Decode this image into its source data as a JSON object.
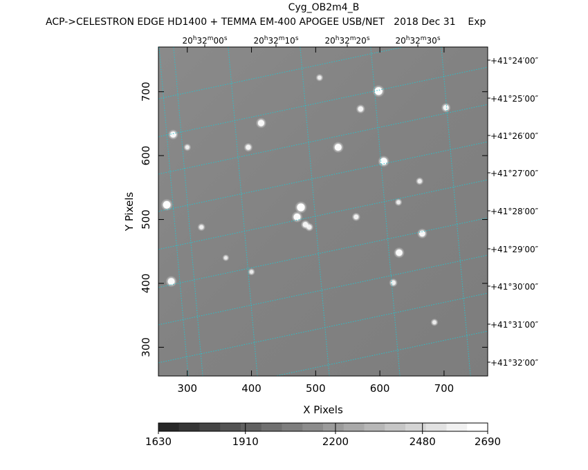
{
  "chart_data": {
    "type": "heatmap",
    "title": "Cyg_OB2m4_B",
    "subtitle": "ACP->CELESTRON EDGE HD1400 + TEMMA EM-400 APOGEE USB/NET   2018 Dec 31    Exp",
    "xlabel": "X Pixels",
    "ylabel": "Y Pixels",
    "xlim": [
      255,
      768
    ],
    "ylim": [
      255,
      770
    ],
    "x_ticks": [
      300,
      400,
      500,
      600,
      700
    ],
    "y_ticks": [
      300,
      400,
      500,
      600,
      700
    ],
    "ra_ticks": [
      {
        "h": "20",
        "m": "32",
        "s": "00"
      },
      {
        "h": "20",
        "m": "32",
        "s": "10"
      },
      {
        "h": "20",
        "m": "32",
        "s": "20"
      },
      {
        "h": "20",
        "m": "32",
        "s": "30"
      }
    ],
    "dec_ticks": [
      "+41°24′00″",
      "+41°25′00″",
      "+41°26′00″",
      "+41°27′00″",
      "+41°28′00″",
      "+41°29′00″",
      "+41°30′00″",
      "+41°31′00″",
      "+41°32′00″"
    ],
    "colorbar": {
      "levels": 16,
      "range": [
        1630,
        2690
      ],
      "tick_labels": [
        "1630",
        "1910",
        "2200",
        "2480",
        "2690"
      ],
      "tick_values": [
        1630,
        1910,
        2200,
        2480,
        2690
      ]
    },
    "grid": true,
    "grid_color": "#29c2cc",
    "stars": [
      {
        "x": 275,
        "y": 403,
        "b": 0.85
      },
      {
        "x": 268,
        "y": 523,
        "b": 0.95
      },
      {
        "x": 278,
        "y": 633,
        "b": 0.7
      },
      {
        "x": 300,
        "y": 613,
        "b": 0.3
      },
      {
        "x": 322,
        "y": 488,
        "b": 0.35
      },
      {
        "x": 395,
        "y": 613,
        "b": 0.5
      },
      {
        "x": 415,
        "y": 651,
        "b": 0.75
      },
      {
        "x": 535,
        "y": 613,
        "b": 0.85
      },
      {
        "x": 477,
        "y": 519,
        "b": 1.0
      },
      {
        "x": 471,
        "y": 504,
        "b": 0.85
      },
      {
        "x": 484,
        "y": 492,
        "b": 0.55
      },
      {
        "x": 490,
        "y": 488,
        "b": 0.45
      },
      {
        "x": 506,
        "y": 722,
        "b": 0.3
      },
      {
        "x": 570,
        "y": 673,
        "b": 0.55
      },
      {
        "x": 598,
        "y": 701,
        "b": 1.0
      },
      {
        "x": 606,
        "y": 591,
        "b": 0.9
      },
      {
        "x": 563,
        "y": 504,
        "b": 0.45
      },
      {
        "x": 666,
        "y": 478,
        "b": 0.7
      },
      {
        "x": 630,
        "y": 448,
        "b": 0.8
      },
      {
        "x": 662,
        "y": 560,
        "b": 0.35
      },
      {
        "x": 629,
        "y": 527,
        "b": 0.3
      },
      {
        "x": 621,
        "y": 401,
        "b": 0.45
      },
      {
        "x": 703,
        "y": 675,
        "b": 0.6
      },
      {
        "x": 685,
        "y": 339,
        "b": 0.3
      },
      {
        "x": 400,
        "y": 418,
        "b": 0.25
      },
      {
        "x": 360,
        "y": 440,
        "b": 0.2
      }
    ]
  }
}
